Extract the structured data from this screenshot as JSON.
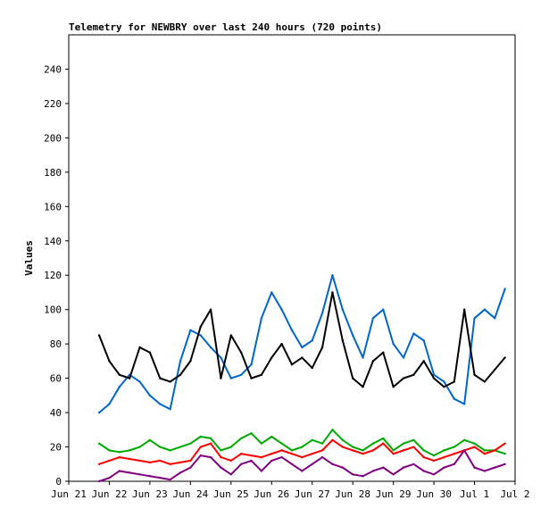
{
  "chart_data": {
    "type": "line",
    "title": "Telemetry for NEWBRY over last 240 hours (720 points)",
    "xlabel": "",
    "ylabel": "Values",
    "ylim": [
      0,
      260
    ],
    "yticks": [
      0,
      20,
      40,
      60,
      80,
      100,
      120,
      140,
      160,
      180,
      200,
      220,
      240
    ],
    "x_domain": [
      "2021-06-21",
      "2021-07-02"
    ],
    "xticks": [
      {
        "date": "2021-06-21",
        "label": "Jun 21"
      },
      {
        "date": "2021-06-22",
        "label": "Jun 22"
      },
      {
        "date": "2021-06-23",
        "label": "Jun 23"
      },
      {
        "date": "2021-06-24",
        "label": "Jun 24"
      },
      {
        "date": "2021-06-25",
        "label": "Jun 25"
      },
      {
        "date": "2021-06-26",
        "label": "Jun 26"
      },
      {
        "date": "2021-06-27",
        "label": "Jun 27"
      },
      {
        "date": "2021-06-28",
        "label": "Jun 28"
      },
      {
        "date": "2021-06-29",
        "label": "Jun 29"
      },
      {
        "date": "2021-06-30",
        "label": "Jun 30"
      },
      {
        "date": "2021-07-01",
        "label": "Jul 1"
      },
      {
        "date": "2021-07-02",
        "label": "Jul 2"
      }
    ],
    "grid": false,
    "x": [
      "2021-06-21 18:00",
      "2021-06-22 00:00",
      "2021-06-22 06:00",
      "2021-06-22 12:00",
      "2021-06-22 18:00",
      "2021-06-23 00:00",
      "2021-06-23 06:00",
      "2021-06-23 12:00",
      "2021-06-23 18:00",
      "2021-06-24 00:00",
      "2021-06-24 06:00",
      "2021-06-24 12:00",
      "2021-06-24 18:00",
      "2021-06-25 00:00",
      "2021-06-25 06:00",
      "2021-06-25 12:00",
      "2021-06-25 18:00",
      "2021-06-26 00:00",
      "2021-06-26 06:00",
      "2021-06-26 12:00",
      "2021-06-26 18:00",
      "2021-06-27 00:00",
      "2021-06-27 06:00",
      "2021-06-27 12:00",
      "2021-06-27 18:00",
      "2021-06-28 00:00",
      "2021-06-28 06:00",
      "2021-06-28 12:00",
      "2021-06-28 18:00",
      "2021-06-29 00:00",
      "2021-06-29 06:00",
      "2021-06-29 12:00",
      "2021-06-29 18:00",
      "2021-06-30 00:00",
      "2021-06-30 06:00",
      "2021-06-30 12:00",
      "2021-06-30 18:00",
      "2021-07-01 00:00",
      "2021-07-01 06:00",
      "2021-07-01 12:00",
      "2021-07-01 18:00"
    ],
    "series": [
      {
        "color": "#0066cc",
        "values": [
          40,
          45,
          55,
          62,
          58,
          50,
          45,
          42,
          70,
          88,
          85,
          78,
          72,
          60,
          62,
          68,
          95,
          110,
          100,
          88,
          78,
          82,
          98,
          120,
          100,
          85,
          72,
          95,
          100,
          80,
          72,
          86,
          82,
          62,
          58,
          48,
          45,
          95,
          100,
          95,
          112
        ]
      },
      {
        "color": "#000000",
        "values": [
          85,
          70,
          62,
          60,
          78,
          75,
          60,
          58,
          62,
          70,
          90,
          100,
          60,
          85,
          75,
          60,
          62,
          72,
          80,
          68,
          72,
          66,
          78,
          110,
          82,
          60,
          55,
          70,
          75,
          55,
          60,
          62,
          70,
          60,
          55,
          58,
          100,
          62,
          58,
          65,
          72
        ]
      },
      {
        "color": "#00aa00",
        "values": [
          22,
          18,
          17,
          18,
          20,
          24,
          20,
          18,
          20,
          22,
          26,
          25,
          18,
          20,
          25,
          28,
          22,
          26,
          22,
          18,
          20,
          24,
          22,
          30,
          24,
          20,
          18,
          22,
          25,
          18,
          22,
          24,
          18,
          15,
          18,
          20,
          24,
          22,
          18,
          18,
          16
        ]
      },
      {
        "color": "#ff0000",
        "values": [
          10,
          12,
          14,
          13,
          12,
          11,
          12,
          10,
          11,
          12,
          20,
          22,
          14,
          12,
          16,
          15,
          14,
          16,
          18,
          16,
          14,
          16,
          18,
          24,
          20,
          18,
          16,
          18,
          22,
          16,
          18,
          20,
          14,
          12,
          14,
          16,
          18,
          20,
          16,
          18,
          22
        ]
      },
      {
        "color": "#800080",
        "values": [
          0,
          2,
          6,
          5,
          4,
          3,
          2,
          1,
          5,
          8,
          15,
          14,
          8,
          4,
          10,
          12,
          6,
          12,
          14,
          10,
          6,
          10,
          14,
          10,
          8,
          4,
          3,
          6,
          8,
          4,
          8,
          10,
          6,
          4,
          8,
          10,
          18,
          8,
          6,
          8,
          10
        ]
      }
    ]
  }
}
